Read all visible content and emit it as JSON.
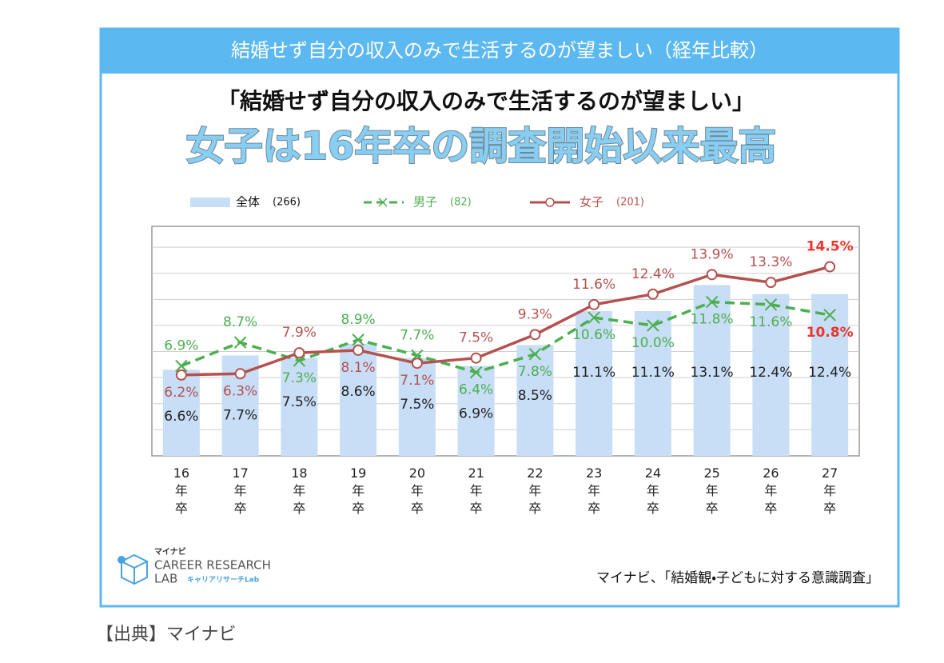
{
  "header": "結婚せず自分の収入のみで生活するのが望ましい（経年比較）",
  "chart_data": {
    "type": "combo",
    "title": "「結婚せず自分の収入のみで生活するのが望ましい」",
    "subtitle": "女子は16年卒の調査開始以来最高",
    "categories": [
      "16年卒",
      "17年卒",
      "18年卒",
      "19年卒",
      "20年卒",
      "21年卒",
      "22年卒",
      "23年卒",
      "24年卒",
      "25年卒",
      "26年卒",
      "27年卒"
    ],
    "series": [
      {
        "name": "全体",
        "sample": "(266)",
        "type": "bar",
        "color": "#c8ddf6",
        "values": [
          6.6,
          7.7,
          7.5,
          8.6,
          7.5,
          6.9,
          8.5,
          11.1,
          11.1,
          13.1,
          12.4,
          12.4
        ],
        "value_labels": [
          "6.6%",
          "7.7%",
          "7.5%",
          "8.6%",
          "7.5%",
          "6.9%",
          "8.5%",
          "11.1%",
          "11.1%",
          "13.1%",
          "12.4%",
          "12.4%"
        ]
      },
      {
        "name": "男子",
        "sample": "(82)",
        "type": "dashed-line",
        "color": "#4caf50",
        "values": [
          6.9,
          8.7,
          7.3,
          8.9,
          7.7,
          6.4,
          7.8,
          10.6,
          10.0,
          11.8,
          11.6,
          10.8
        ],
        "value_labels": [
          "6.9%",
          "8.7%",
          "7.3%",
          "8.9%",
          "7.7%",
          "6.4%",
          "7.8%",
          "10.6%",
          "10.0%",
          "11.8%",
          "11.6%",
          "10.8%"
        ]
      },
      {
        "name": "女子",
        "sample": "(201)",
        "type": "line",
        "color": "#b5524f",
        "values": [
          6.2,
          6.3,
          7.9,
          8.1,
          7.1,
          7.5,
          9.3,
          11.6,
          12.4,
          13.9,
          13.3,
          14.5
        ],
        "value_labels": [
          "6.2%",
          "6.3%",
          "7.9%",
          "8.1%",
          "7.1%",
          "7.5%",
          "9.3%",
          "11.6%",
          "12.4%",
          "13.9%",
          "13.3%",
          "14.5%"
        ]
      }
    ],
    "ylim": [
      0,
      17.6
    ],
    "grid": true,
    "highlight_color": "#e8372f"
  },
  "logo": {
    "brand": "マイナビ",
    "name": "CAREER RESEARCH",
    "sub": "LAB",
    "kana": "キャリアリサーチLab"
  },
  "source": "マイナビ、「結婚観・子どもに対する意識調査」",
  "citation": "【出典】マイナビ"
}
